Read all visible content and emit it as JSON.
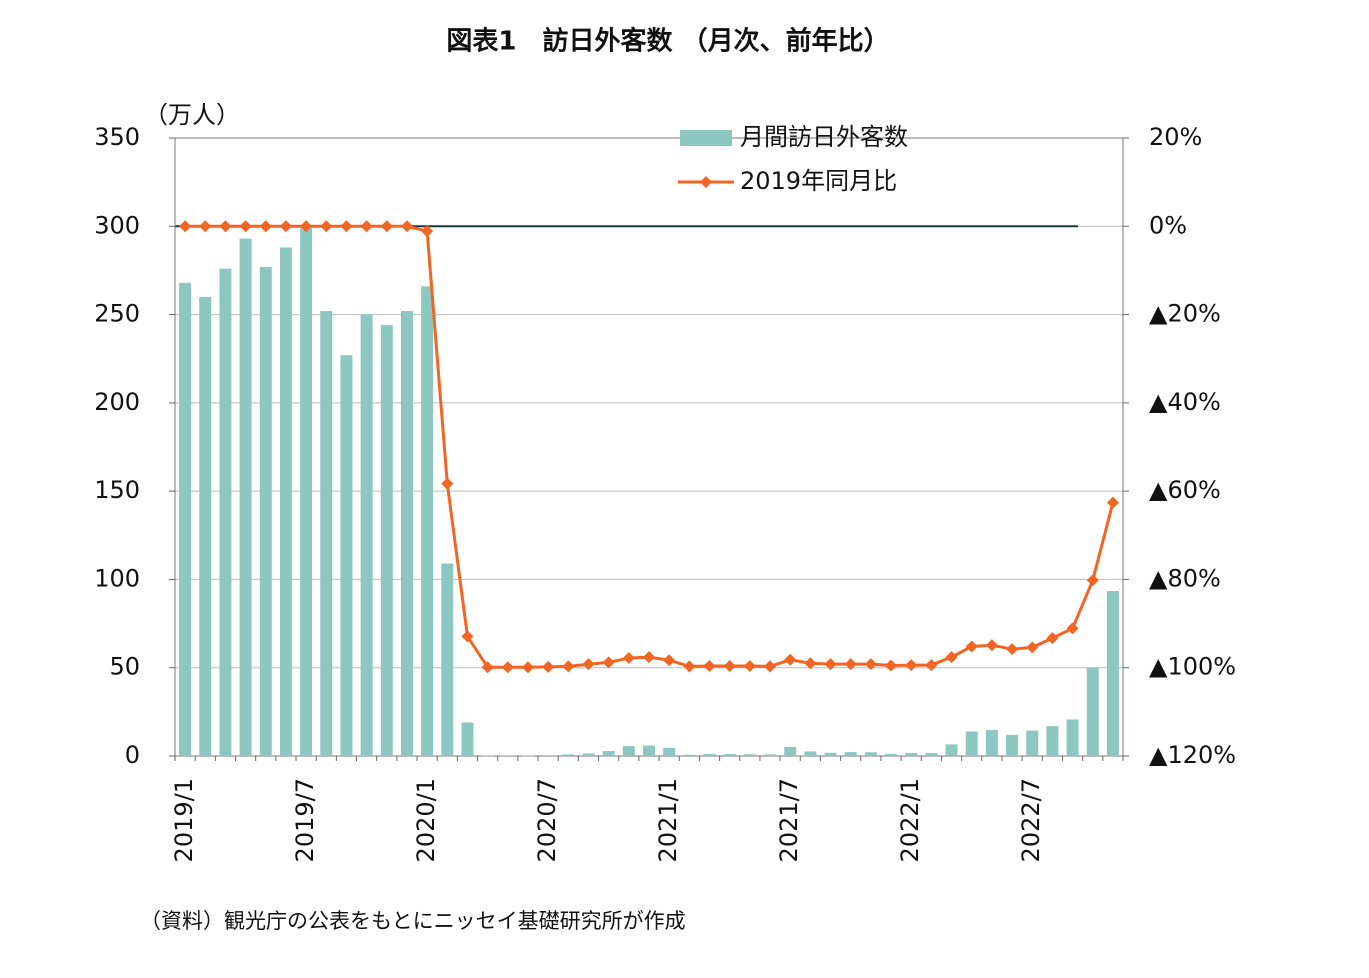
{
  "chart_data": {
    "type": "bar+line",
    "title": "図表1　訪日外客数 （月次、前年比）",
    "y_label": "（万人）",
    "source": "（資料）観光庁の公表をもとにニッセイ基礎研究所が作成",
    "categories": [
      "2019/1",
      null,
      null,
      null,
      null,
      null,
      "2019/7",
      null,
      null,
      null,
      null,
      null,
      "2020/1",
      null,
      null,
      null,
      null,
      null,
      "2020/7",
      null,
      null,
      null,
      null,
      null,
      "2021/1",
      null,
      null,
      null,
      null,
      null,
      "2021/7",
      null,
      null,
      null,
      null,
      null,
      "2022/1",
      null,
      null,
      null,
      null,
      null,
      "2022/7",
      null,
      null,
      null,
      null
    ],
    "series": [
      {
        "name": "月間訪日外客数",
        "type": "bar",
        "color": "#8cc8c0",
        "axis": "y",
        "values": [
          268,
          260,
          276,
          293,
          277,
          288,
          299,
          252,
          227,
          250,
          244,
          252,
          266,
          109,
          19,
          0.3,
          0.2,
          0.3,
          0.4,
          0.9,
          1.4,
          2.8,
          5.6,
          5.9,
          4.6,
          0.7,
          1.2,
          1.1,
          1,
          0.9,
          5.1,
          2.6,
          1.8,
          2.2,
          2.1,
          1.2,
          1.7,
          1.7,
          6.6,
          13.9,
          14.7,
          12,
          14.4,
          16.9,
          20.7,
          49.9,
          93.4
        ]
      },
      {
        "name": "2019年同月比",
        "type": "line",
        "color": "#f26522",
        "axis": "y2",
        "values": [
          0,
          0,
          0,
          0,
          0,
          0,
          0,
          0,
          0,
          0,
          0,
          0,
          -1.1,
          -58.3,
          -92.9,
          -99.9,
          -99.9,
          -99.9,
          -99.8,
          -99.7,
          -99.2,
          -98.8,
          -97.8,
          -97.6,
          -98.3,
          -99.7,
          -99.6,
          -99.6,
          -99.6,
          -99.7,
          -98.2,
          -99.0,
          -99.2,
          -99.2,
          -99.2,
          -99.5,
          -99.4,
          -99.4,
          -97.6,
          -95.2,
          -94.9,
          -95.8,
          -95.4,
          -93.3,
          -91.1,
          -80.2,
          -62.6
        ]
      }
    ],
    "ylim": [
      0,
      350
    ],
    "yticks": [
      0,
      50,
      100,
      150,
      200,
      250,
      300,
      350
    ],
    "y2lim": [
      -120,
      20
    ],
    "y2ticks": [
      {
        "value": 20,
        "label": "20%"
      },
      {
        "value": 0,
        "label": "0%"
      },
      {
        "value": -20,
        "label": "▲20%"
      },
      {
        "value": -40,
        "label": "▲40%"
      },
      {
        "value": -60,
        "label": "▲60%"
      },
      {
        "value": -80,
        "label": "▲80%"
      },
      {
        "value": -100,
        "label": "▲100%"
      },
      {
        "value": -120,
        "label": "▲120%"
      }
    ],
    "grid": true,
    "legend": "top-right"
  }
}
